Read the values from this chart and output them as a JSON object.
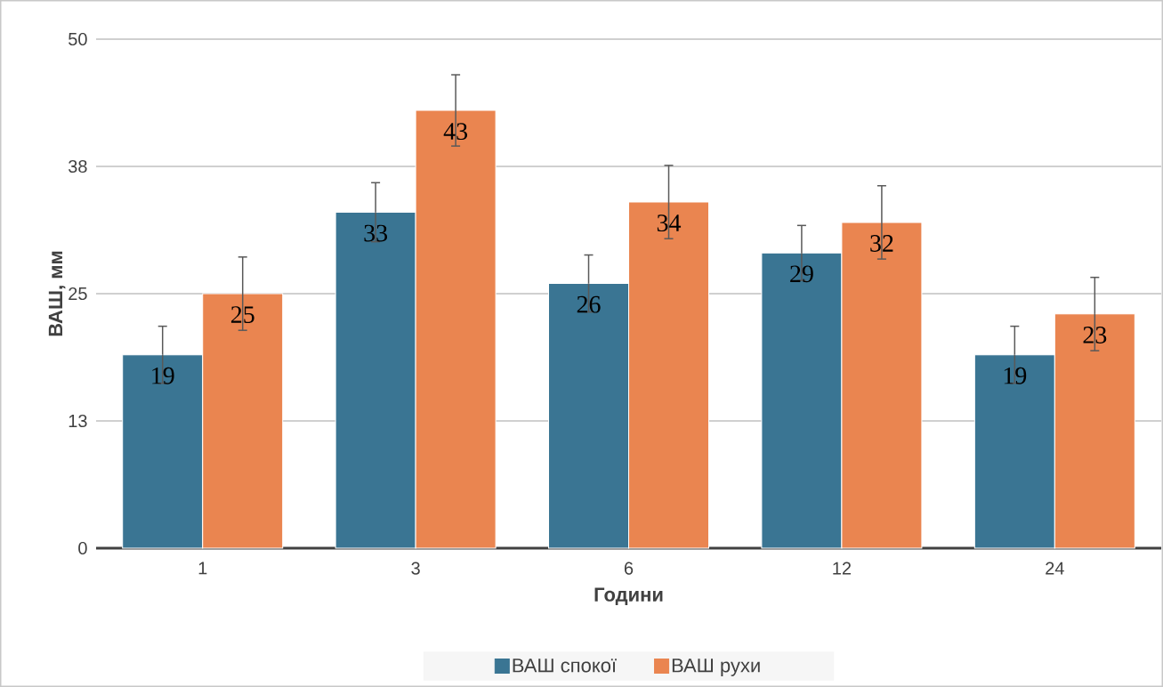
{
  "chart_data": {
    "type": "bar",
    "xlabel": "Години",
    "ylabel": "ВАШ, мм",
    "categories": [
      "1",
      "3",
      "6",
      "12",
      "24"
    ],
    "series": [
      {
        "name": "ВАШ спокої",
        "color": "#3a7593",
        "values": [
          19,
          33,
          26,
          29,
          19
        ],
        "errors": [
          2.8,
          2.9,
          2.8,
          2.7,
          2.8
        ]
      },
      {
        "name": "ВАШ рухи",
        "color": "#ea8550",
        "values": [
          25,
          43,
          34,
          32,
          23
        ],
        "errors": [
          3.6,
          3.5,
          3.6,
          3.6,
          3.6
        ]
      }
    ],
    "ylim": [
      0,
      50
    ],
    "yticks": [
      0,
      {
        "value": 12.5,
        "label": "13"
      },
      25,
      {
        "value": 37.5,
        "label": "38"
      },
      50
    ],
    "grid": "y",
    "legend": "bottom",
    "data_labels": true
  }
}
